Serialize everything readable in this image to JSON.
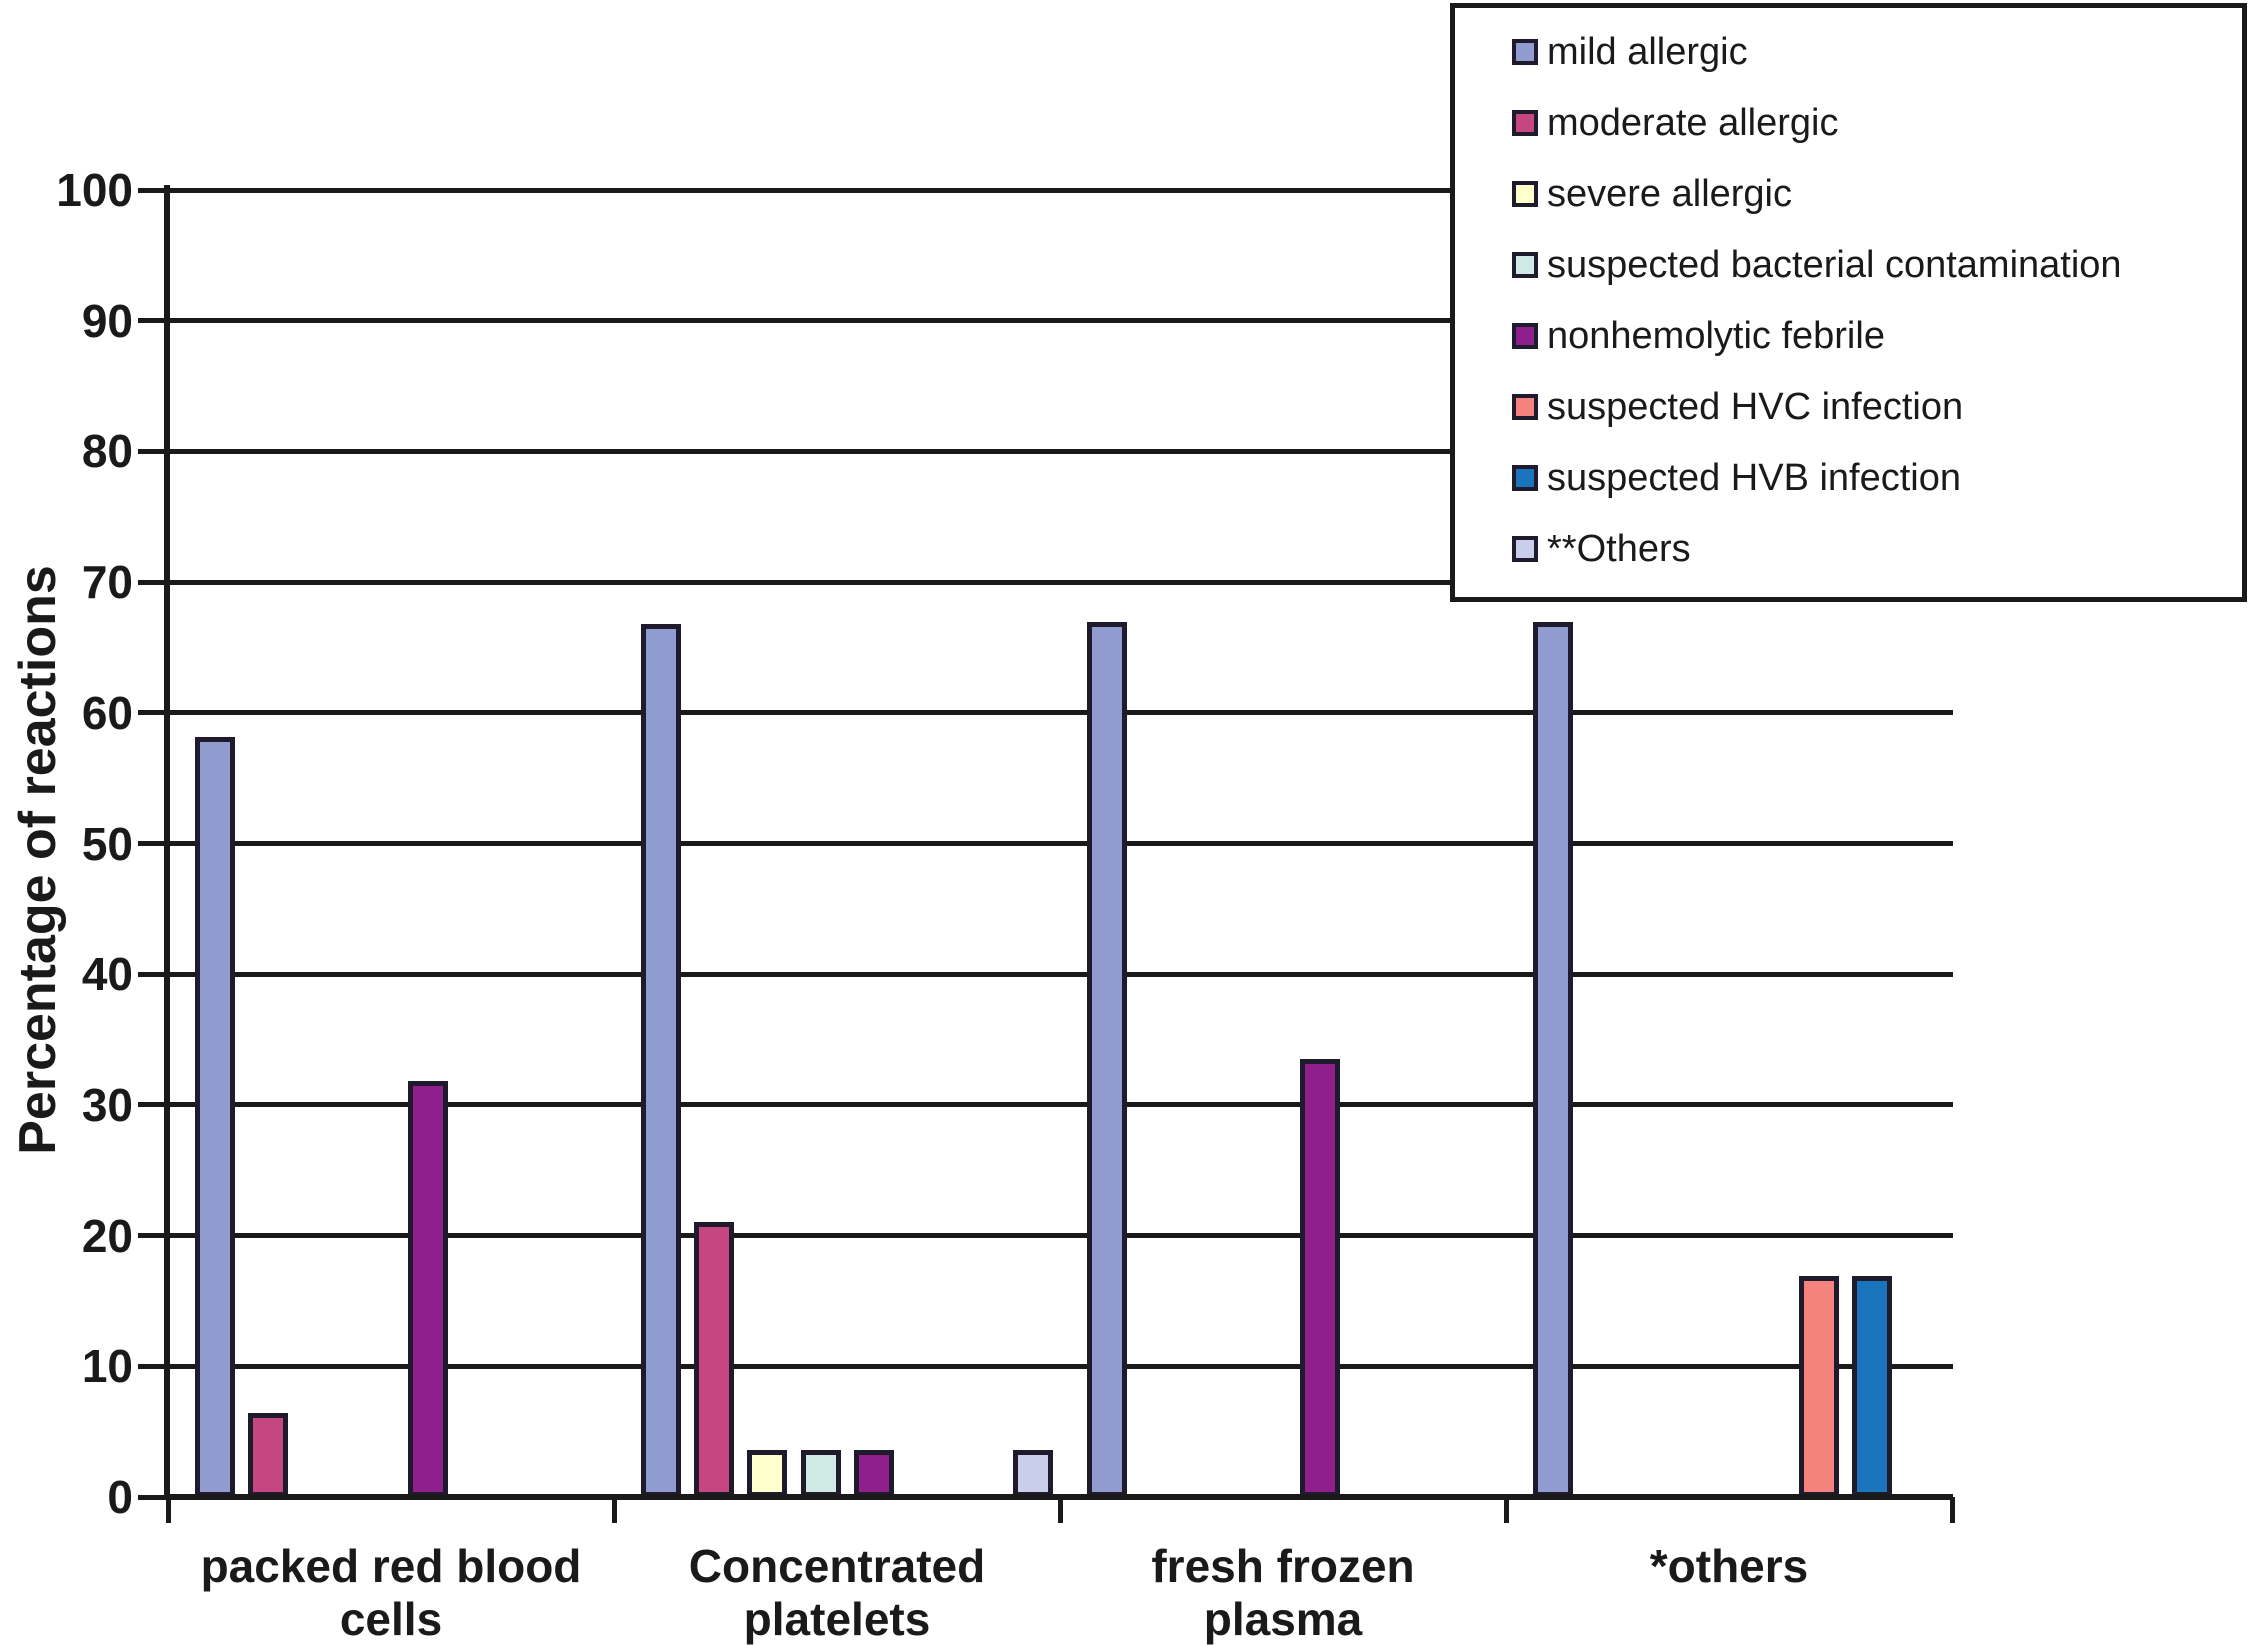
{
  "chart_data": {
    "type": "bar",
    "title": "",
    "ylabel": "Percentage of reactions",
    "xlabel": "",
    "ylim": [
      0,
      100
    ],
    "y_ticks": [
      0,
      10,
      20,
      30,
      40,
      50,
      60,
      70,
      80,
      90,
      100
    ],
    "grid": "horizontal",
    "legend_position": "top-right",
    "bar_outline_color": "#1f1b2d",
    "grid_color": "#1a1a1a",
    "categories": [
      "packed red blood cells",
      "Concentrated platelets",
      "fresh frozen plasma",
      "*others"
    ],
    "series": [
      {
        "name": "mild allergic",
        "color": "#909CCF",
        "values": [
          57.9,
          66.6,
          66.7,
          66.7
        ]
      },
      {
        "name": "moderate allergic",
        "color": "#C54680",
        "values": [
          6.2,
          20.8,
          0,
          0
        ]
      },
      {
        "name": "severe allergic",
        "color": "#FFFFCC",
        "values": [
          0,
          3.4,
          0,
          0
        ]
      },
      {
        "name": "suspected bacterial contamination",
        "color": "#CFEAE4",
        "values": [
          0,
          3.4,
          0,
          0
        ]
      },
      {
        "name": "nonhemolytic febrile",
        "color": "#8E1F8C",
        "values": [
          31.6,
          3.4,
          33.3,
          0
        ]
      },
      {
        "name": "suspected HVC infection",
        "color": "#F4837D",
        "values": [
          0,
          0,
          0,
          16.7
        ]
      },
      {
        "name": "suspected HVB infection",
        "color": "#1B75BC",
        "values": [
          0,
          0,
          0,
          16.7
        ]
      },
      {
        "name": "**Others",
        "color": "#C9CFEA",
        "values": [
          0,
          3.4,
          0,
          0
        ]
      }
    ]
  }
}
